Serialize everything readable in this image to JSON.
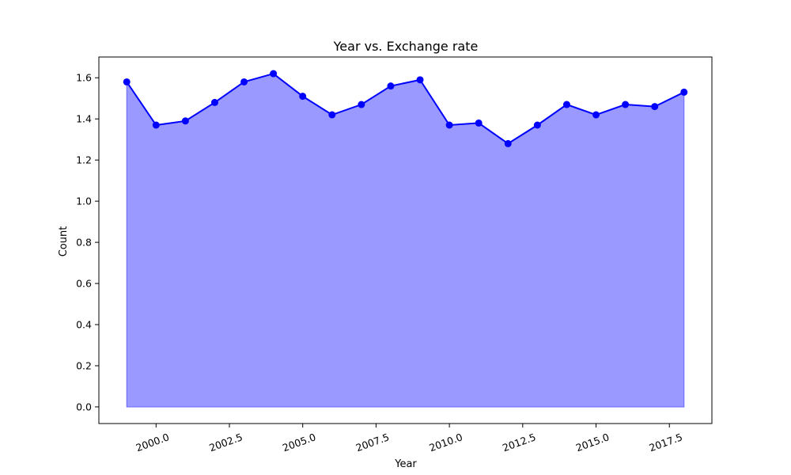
{
  "chart_data": {
    "type": "area",
    "title": "Year vs. Exchange rate",
    "xlabel": "Year",
    "ylabel": "Count",
    "x": [
      1999,
      2000,
      2001,
      2002,
      2003,
      2004,
      2005,
      2006,
      2007,
      2008,
      2009,
      2010,
      2011,
      2012,
      2013,
      2014,
      2015,
      2016,
      2017,
      2018
    ],
    "series": [
      {
        "values": [
          1.58,
          1.37,
          1.39,
          1.48,
          1.58,
          1.62,
          1.51,
          1.42,
          1.47,
          1.56,
          1.59,
          1.37,
          1.38,
          1.28,
          1.37,
          1.47,
          1.42,
          1.47,
          1.46,
          1.53
        ],
        "line_color": "#0000ff",
        "fill_color": "#9999ff",
        "marker": "circle"
      }
    ],
    "xlim": [
      1998.05,
      2018.95
    ],
    "ylim": [
      -0.081,
      1.701
    ],
    "xticks": [
      2000.0,
      2002.5,
      2005.0,
      2007.5,
      2010.0,
      2012.5,
      2015.0,
      2017.5
    ],
    "xtick_labels": [
      "2000.0",
      "2002.5",
      "2005.0",
      "2007.5",
      "2010.0",
      "2012.5",
      "2015.0",
      "2017.5"
    ],
    "yticks": [
      0.0,
      0.2,
      0.4,
      0.6,
      0.8,
      1.0,
      1.2,
      1.4,
      1.6
    ],
    "ytick_labels": [
      "0.0",
      "0.2",
      "0.4",
      "0.6",
      "0.8",
      "1.0",
      "1.2",
      "1.4",
      "1.6"
    ],
    "grid": false,
    "legend": "none"
  }
}
